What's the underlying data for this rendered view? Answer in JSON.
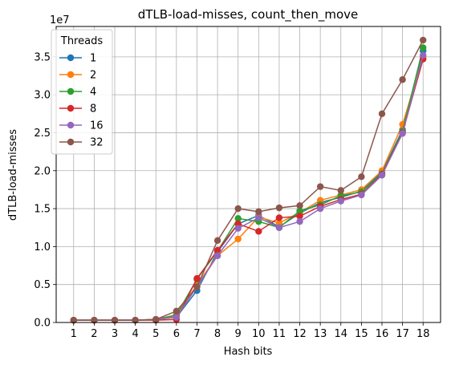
{
  "chart_data": {
    "type": "line",
    "title": "dTLB-load-misses, count_then_move",
    "xlabel": "Hash bits",
    "ylabel": "dTLB-load-misses",
    "y_multiplier_label": "1e7",
    "x": [
      1,
      2,
      3,
      4,
      5,
      6,
      7,
      8,
      9,
      10,
      11,
      12,
      13,
      14,
      15,
      16,
      17,
      18
    ],
    "ylim": [
      0,
      3.9
    ],
    "yticks": [
      "0.0",
      "0.5",
      "1.0",
      "1.5",
      "2.0",
      "2.5",
      "3.0",
      "3.5"
    ],
    "ytick_values": [
      0.0,
      0.5,
      1.0,
      1.5,
      2.0,
      2.5,
      3.0,
      3.5
    ],
    "grid": true,
    "legend": {
      "title": "Threads",
      "placement": "top-left"
    },
    "series": [
      {
        "name": "1",
        "color": "#1f77b4",
        "values": [
          0.03,
          0.03,
          0.03,
          0.03,
          0.04,
          0.07,
          0.42,
          0.93,
          1.3,
          1.41,
          1.26,
          1.44,
          1.58,
          1.65,
          1.73,
          1.98,
          2.54,
          3.58
        ]
      },
      {
        "name": "2",
        "color": "#ff7f0e",
        "values": [
          0.03,
          0.03,
          0.03,
          0.03,
          0.04,
          0.08,
          0.5,
          0.88,
          1.1,
          1.39,
          1.31,
          1.45,
          1.61,
          1.68,
          1.75,
          2.0,
          2.61,
          3.5
        ]
      },
      {
        "name": "4",
        "color": "#2ca02c",
        "values": [
          0.03,
          0.03,
          0.03,
          0.03,
          0.04,
          0.1,
          0.57,
          0.94,
          1.37,
          1.33,
          1.25,
          1.47,
          1.55,
          1.67,
          1.72,
          1.96,
          2.52,
          3.62
        ]
      },
      {
        "name": "8",
        "color": "#d62728",
        "values": [
          0.03,
          0.03,
          0.03,
          0.03,
          0.03,
          0.04,
          0.58,
          0.95,
          1.3,
          1.2,
          1.38,
          1.4,
          1.53,
          1.62,
          1.69,
          1.95,
          2.5,
          3.47
        ]
      },
      {
        "name": "16",
        "color": "#9467bd",
        "values": [
          0.03,
          0.03,
          0.03,
          0.03,
          0.04,
          0.07,
          0.47,
          0.88,
          1.24,
          1.38,
          1.25,
          1.33,
          1.5,
          1.6,
          1.68,
          1.94,
          2.49,
          3.52
        ]
      },
      {
        "name": "32",
        "color": "#8c564b",
        "values": [
          0.03,
          0.03,
          0.03,
          0.03,
          0.04,
          0.15,
          0.47,
          1.08,
          1.5,
          1.46,
          1.51,
          1.54,
          1.79,
          1.74,
          1.92,
          2.75,
          3.2,
          3.72
        ]
      }
    ]
  }
}
